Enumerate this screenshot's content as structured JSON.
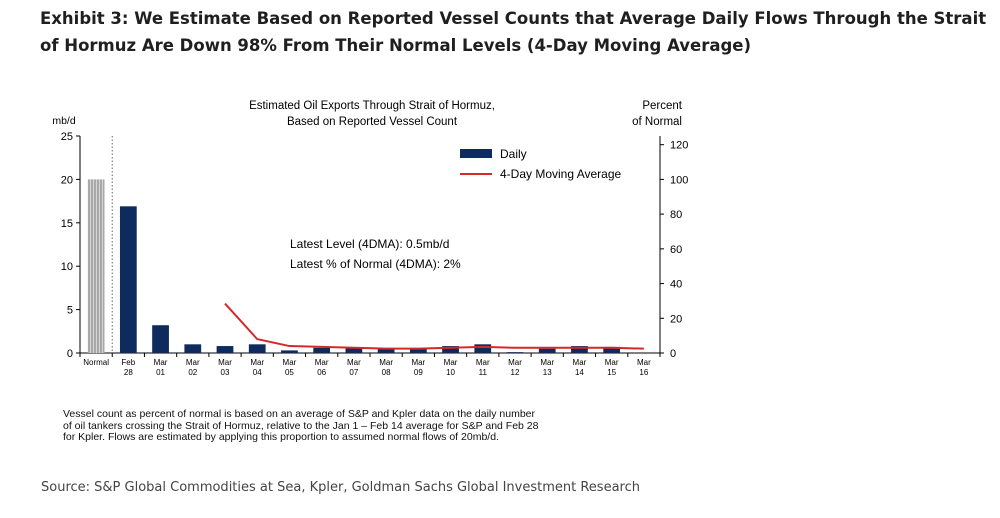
{
  "exhibit_title": "Exhibit 3: We Estimate Based on Reported Vessel Counts that Average Daily Flows Through the Strait of Hormuz Are Down 98% From Their Normal Levels (4-Day Moving Average)",
  "footnote": "Vessel count as percent of normal is based on an average of S&P and Kpler data on the daily number\nof oil tankers crossing the Strait of Hormuz, relative to the Jan 1 – Feb 14 average for S&P and Feb 28\nfor Kpler. Flows are estimated by applying this proportion to assumed normal flows of 20mb/d.",
  "source": "Source: S&P Global Commodities at Sea, Kpler, Goldman Sachs Global Investment Research",
  "chart_data": {
    "type": "bar",
    "title": [
      "Estimated Oil Exports Through Strait of Hormuz,",
      "Based on Reported Vessel Count"
    ],
    "left_axis_label": "mb/d",
    "right_axis_label": [
      "Percent",
      "of Normal"
    ],
    "ylim": [
      0,
      25
    ],
    "yticks": [
      0,
      5,
      10,
      15,
      20,
      25
    ],
    "y2lim": [
      0,
      125
    ],
    "y2ticks": [
      0,
      20,
      40,
      60,
      80,
      100,
      120
    ],
    "categories": [
      [
        "Normal"
      ],
      [
        "Feb",
        "28"
      ],
      [
        "Mar",
        "01"
      ],
      [
        "Mar",
        "02"
      ],
      [
        "Mar",
        "03"
      ],
      [
        "Mar",
        "04"
      ],
      [
        "Mar",
        "05"
      ],
      [
        "Mar",
        "06"
      ],
      [
        "Mar",
        "07"
      ],
      [
        "Mar",
        "08"
      ],
      [
        "Mar",
        "09"
      ],
      [
        "Mar",
        "10"
      ],
      [
        "Mar",
        "11"
      ],
      [
        "Mar",
        "12"
      ],
      [
        "Mar",
        "13"
      ],
      [
        "Mar",
        "14"
      ],
      [
        "Mar",
        "15"
      ],
      [
        "Mar",
        "16"
      ]
    ],
    "normal_value": 20,
    "series": [
      {
        "name": "Daily",
        "type": "bar",
        "color": "#0f2a5c",
        "values": [
          null,
          16.9,
          3.2,
          1.0,
          0.8,
          1.0,
          0.3,
          0.6,
          0.6,
          0.5,
          0.5,
          0.8,
          1.0,
          0.1,
          0.5,
          0.8,
          0.7,
          null
        ]
      },
      {
        "name": "4-Day Moving Average",
        "type": "line",
        "color": "#d22a2a",
        "values": [
          null,
          null,
          null,
          null,
          5.7,
          1.6,
          0.8,
          0.7,
          0.6,
          0.5,
          0.5,
          0.6,
          0.7,
          0.6,
          0.6,
          0.6,
          0.6,
          0.5
        ]
      }
    ],
    "annotations": [
      "Latest Level (4DMA): 0.5mb/d",
      "Latest % of Normal (4DMA): 2%"
    ],
    "legend_position": "top-right",
    "normal_bar_color": "#a8a8a8",
    "grid": false
  }
}
